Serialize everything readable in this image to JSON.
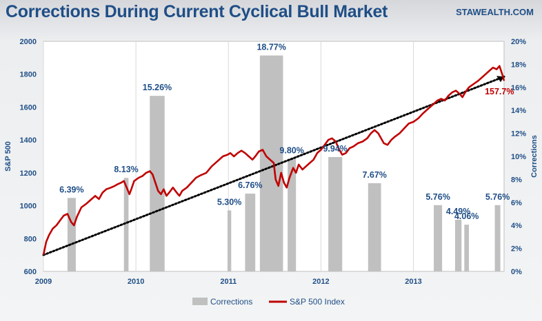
{
  "header": {
    "title": "Corrections During Current Cyclical Bull Market",
    "brand": "STAWEALTH.COM"
  },
  "chart_data": {
    "type": "bar+line",
    "title": "Corrections During Current Cyclical Bull Market",
    "xlabel": "",
    "ylabel_left": "S&P 500",
    "ylabel_right": "Corrections",
    "x_ticks": [
      "2009",
      "2010",
      "2011",
      "2012",
      "2013"
    ],
    "xlim": [
      2009.0,
      2013.98
    ],
    "ylim_left": [
      600,
      2000
    ],
    "y_ticks_left": [
      600,
      800,
      1000,
      1200,
      1400,
      1600,
      1800,
      2000
    ],
    "ylim_right": [
      0,
      20
    ],
    "y_ticks_right": [
      "0%",
      "2%",
      "4%",
      "6%",
      "8%",
      "10%",
      "12%",
      "14%",
      "16%",
      "18%",
      "20%"
    ],
    "colors": {
      "title": "#1f4e86",
      "bars": "#c0c0c0",
      "line": "#c00000",
      "trend": "#000000",
      "end_label": "#c00000"
    },
    "series": [
      {
        "name": "Corrections",
        "type": "bar",
        "bars": [
          {
            "x0": 2009.26,
            "x1": 2009.35,
            "value": 6.39,
            "label": "6.39%"
          },
          {
            "x0": 2009.87,
            "x1": 2009.92,
            "value": 8.13,
            "label": "8.13%"
          },
          {
            "x0": 2010.15,
            "x1": 2010.31,
            "value": 15.26,
            "label": "15.26%"
          },
          {
            "x0": 2010.99,
            "x1": 2011.03,
            "value": 5.3,
            "label": "5.30%"
          },
          {
            "x0": 2011.18,
            "x1": 2011.29,
            "value": 6.76,
            "label": "6.76%"
          },
          {
            "x0": 2011.34,
            "x1": 2011.59,
            "value": 18.77,
            "label": "18.77%"
          },
          {
            "x0": 2011.64,
            "x1": 2011.73,
            "value": 9.8,
            "label": "9.80%"
          },
          {
            "x0": 2012.08,
            "x1": 2012.23,
            "value": 9.94,
            "label": "9.94%"
          },
          {
            "x0": 2012.51,
            "x1": 2012.65,
            "value": 7.67,
            "label": "7.67%"
          },
          {
            "x0": 2013.22,
            "x1": 2013.31,
            "value": 5.76,
            "label": "5.76%"
          },
          {
            "x0": 2013.45,
            "x1": 2013.52,
            "value": 4.49,
            "label": "4.49%"
          },
          {
            "x0": 2013.55,
            "x1": 2013.6,
            "value": 4.06,
            "label": "4.06%"
          },
          {
            "x0": 2013.88,
            "x1": 2013.94,
            "value": 5.76,
            "label": "5.76%"
          }
        ]
      },
      {
        "name": "S&P 500 Index",
        "type": "line",
        "axis": "left",
        "points": [
          [
            2009.0,
            700
          ],
          [
            2009.03,
            780
          ],
          [
            2009.06,
            820
          ],
          [
            2009.1,
            860
          ],
          [
            2009.14,
            880
          ],
          [
            2009.18,
            910
          ],
          [
            2009.22,
            940
          ],
          [
            2009.26,
            950
          ],
          [
            2009.3,
            900
          ],
          [
            2009.33,
            880
          ],
          [
            2009.36,
            930
          ],
          [
            2009.41,
            990
          ],
          [
            2009.46,
            1010
          ],
          [
            2009.52,
            1040
          ],
          [
            2009.56,
            1060
          ],
          [
            2009.6,
            1040
          ],
          [
            2009.64,
            1080
          ],
          [
            2009.68,
            1100
          ],
          [
            2009.73,
            1110
          ],
          [
            2009.77,
            1120
          ],
          [
            2009.8,
            1130
          ],
          [
            2009.84,
            1140
          ],
          [
            2009.87,
            1150
          ],
          [
            2009.9,
            1110
          ],
          [
            2009.93,
            1070
          ],
          [
            2009.95,
            1100
          ],
          [
            2009.98,
            1150
          ],
          [
            2010.03,
            1170
          ],
          [
            2010.07,
            1180
          ],
          [
            2010.11,
            1200
          ],
          [
            2010.15,
            1210
          ],
          [
            2010.18,
            1190
          ],
          [
            2010.21,
            1140
          ],
          [
            2010.24,
            1090
          ],
          [
            2010.27,
            1070
          ],
          [
            2010.3,
            1100
          ],
          [
            2010.33,
            1060
          ],
          [
            2010.36,
            1080
          ],
          [
            2010.4,
            1110
          ],
          [
            2010.44,
            1080
          ],
          [
            2010.47,
            1060
          ],
          [
            2010.5,
            1090
          ],
          [
            2010.55,
            1110
          ],
          [
            2010.6,
            1140
          ],
          [
            2010.65,
            1170
          ],
          [
            2010.7,
            1185
          ],
          [
            2010.76,
            1200
          ],
          [
            2010.82,
            1240
          ],
          [
            2010.88,
            1270
          ],
          [
            2010.94,
            1300
          ],
          [
            2010.99,
            1310
          ],
          [
            2011.02,
            1320
          ],
          [
            2011.06,
            1300
          ],
          [
            2011.1,
            1320
          ],
          [
            2011.14,
            1335
          ],
          [
            2011.18,
            1320
          ],
          [
            2011.22,
            1300
          ],
          [
            2011.26,
            1280
          ],
          [
            2011.29,
            1300
          ],
          [
            2011.33,
            1330
          ],
          [
            2011.37,
            1340
          ],
          [
            2011.41,
            1300
          ],
          [
            2011.45,
            1280
          ],
          [
            2011.49,
            1260
          ],
          [
            2011.51,
            1160
          ],
          [
            2011.54,
            1120
          ],
          [
            2011.57,
            1200
          ],
          [
            2011.6,
            1140
          ],
          [
            2011.63,
            1110
          ],
          [
            2011.66,
            1170
          ],
          [
            2011.7,
            1230
          ],
          [
            2011.73,
            1200
          ],
          [
            2011.76,
            1250
          ],
          [
            2011.8,
            1220
          ],
          [
            2011.84,
            1240
          ],
          [
            2011.88,
            1260
          ],
          [
            2011.92,
            1280
          ],
          [
            2011.96,
            1320
          ],
          [
            2012.0,
            1340
          ],
          [
            2012.04,
            1370
          ],
          [
            2012.08,
            1400
          ],
          [
            2012.12,
            1410
          ],
          [
            2012.16,
            1390
          ],
          [
            2012.19,
            1350
          ],
          [
            2012.23,
            1310
          ],
          [
            2012.27,
            1320
          ],
          [
            2012.31,
            1350
          ],
          [
            2012.35,
            1360
          ],
          [
            2012.4,
            1380
          ],
          [
            2012.45,
            1390
          ],
          [
            2012.5,
            1410
          ],
          [
            2012.54,
            1440
          ],
          [
            2012.58,
            1460
          ],
          [
            2012.62,
            1440
          ],
          [
            2012.65,
            1410
          ],
          [
            2012.68,
            1380
          ],
          [
            2012.72,
            1370
          ],
          [
            2012.76,
            1400
          ],
          [
            2012.8,
            1420
          ],
          [
            2012.85,
            1440
          ],
          [
            2012.9,
            1470
          ],
          [
            2012.95,
            1500
          ],
          [
            2013.0,
            1510
          ],
          [
            2013.05,
            1530
          ],
          [
            2013.1,
            1560
          ],
          [
            2013.14,
            1580
          ],
          [
            2013.18,
            1600
          ],
          [
            2013.22,
            1620
          ],
          [
            2013.26,
            1640
          ],
          [
            2013.3,
            1650
          ],
          [
            2013.34,
            1640
          ],
          [
            2013.38,
            1670
          ],
          [
            2013.42,
            1690
          ],
          [
            2013.46,
            1700
          ],
          [
            2013.5,
            1680
          ],
          [
            2013.53,
            1660
          ],
          [
            2013.56,
            1690
          ],
          [
            2013.6,
            1720
          ],
          [
            2013.65,
            1740
          ],
          [
            2013.7,
            1760
          ],
          [
            2013.74,
            1780
          ],
          [
            2013.78,
            1800
          ],
          [
            2013.82,
            1820
          ],
          [
            2013.86,
            1840
          ],
          [
            2013.9,
            1830
          ],
          [
            2013.93,
            1850
          ],
          [
            2013.96,
            1800
          ],
          [
            2013.98,
            1760
          ]
        ]
      },
      {
        "name": "Trend",
        "type": "line",
        "style": "dotted",
        "axis": "left",
        "points": [
          [
            2009.0,
            700
          ],
          [
            2013.98,
            1785
          ]
        ]
      }
    ],
    "annotations": [
      {
        "text": "157.7%",
        "x": 2013.93,
        "y": 1695,
        "axis": "left"
      }
    ],
    "legend": {
      "position": "bottom-center",
      "items": [
        "Corrections",
        "S&P 500 Index"
      ]
    }
  }
}
